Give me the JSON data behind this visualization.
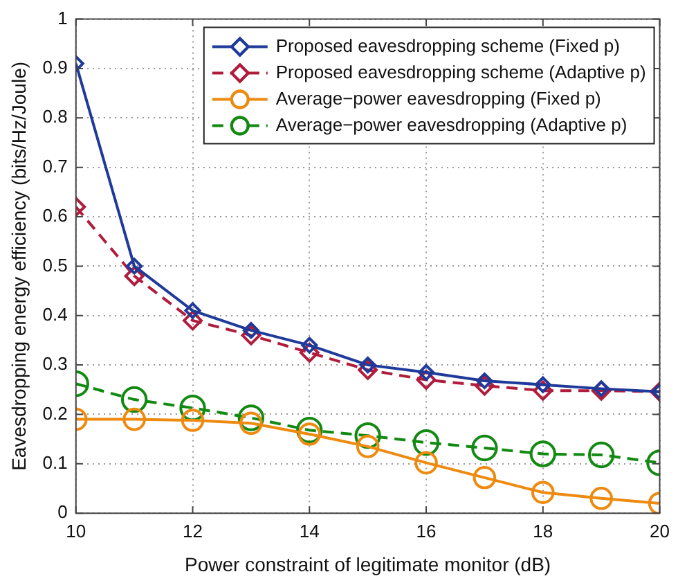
{
  "chart_data": {
    "type": "line",
    "xlabel": "Power constraint of legitimate monitor (dB)",
    "ylabel": "Eavesdropping energy efficiency (bits/Hz/Joule)",
    "x": [
      10,
      11,
      12,
      13,
      14,
      15,
      16,
      17,
      18,
      19,
      20
    ],
    "xlim": [
      10,
      20
    ],
    "xticks": [
      10,
      12,
      14,
      16,
      18,
      20
    ],
    "ylim": [
      0,
      1
    ],
    "yticks": [
      0,
      0.1,
      0.2,
      0.3,
      0.4,
      0.5,
      0.6,
      0.7,
      0.8,
      0.9,
      1
    ],
    "grid": true,
    "legend": "top right",
    "series": [
      {
        "name": "Proposed eavesdropping scheme (Fixed p)",
        "color": "#1f3a9a",
        "marker": "diamond",
        "line_style": "solid",
        "values": [
          0.91,
          0.5,
          0.41,
          0.37,
          0.34,
          0.3,
          0.285,
          0.268,
          0.26,
          0.252,
          0.246
        ]
      },
      {
        "name": "Proposed eavesdropping scheme (Adaptive p)",
        "color": "#b01c3c",
        "marker": "diamond",
        "line_style": "dashed",
        "values": [
          0.62,
          0.48,
          0.39,
          0.36,
          0.325,
          0.29,
          0.27,
          0.258,
          0.248,
          0.248,
          0.246
        ]
      },
      {
        "name": "Average−power eavesdropping (Fixed p)",
        "color": "#ee8a10",
        "marker": "circle",
        "line_style": "solid",
        "values": [
          0.19,
          0.19,
          0.188,
          0.182,
          0.16,
          0.135,
          0.102,
          0.072,
          0.042,
          0.03,
          0.02
        ]
      },
      {
        "name": "Average−power eavesdropping (Adaptive p)",
        "color": "#128a12",
        "marker": "circle",
        "line_style": "dashed",
        "values": [
          0.262,
          0.23,
          0.213,
          0.193,
          0.168,
          0.157,
          0.143,
          0.132,
          0.12,
          0.118,
          0.102
        ]
      }
    ]
  }
}
